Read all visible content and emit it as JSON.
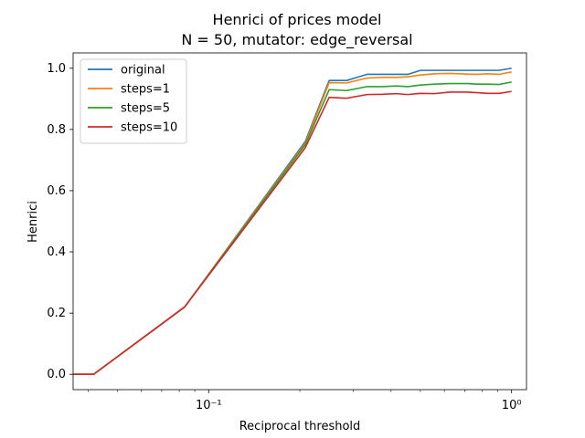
{
  "chart_data": {
    "type": "line",
    "title": "Henrici of prices model",
    "subtitle": "N = 50, mutator: edge_reversal",
    "xlabel": "Reciprocal threshold",
    "ylabel": "Henrici",
    "xscale": "log",
    "xlim": [
      0.0357,
      1.12
    ],
    "ylim": [
      -0.05,
      1.05
    ],
    "x": [
      0.0357,
      0.0417,
      0.0833,
      0.2083,
      0.25,
      0.2857,
      0.3333,
      0.375,
      0.4167,
      0.4545,
      0.5,
      0.5556,
      0.625,
      0.7143,
      0.7692,
      0.8333,
      0.9091,
      1.0
    ],
    "x_ticks": [
      {
        "value": 0.1,
        "label": "10⁻¹"
      },
      {
        "value": 1.0,
        "label": "10⁰"
      }
    ],
    "x_minor_ticks": [
      0.04,
      0.05,
      0.06,
      0.07,
      0.08,
      0.09,
      0.2,
      0.3,
      0.4,
      0.5,
      0.6,
      0.7,
      0.8,
      0.9
    ],
    "y_ticks": [
      {
        "value": 0.0,
        "label": "0.0"
      },
      {
        "value": 0.2,
        "label": "0.2"
      },
      {
        "value": 0.4,
        "label": "0.4"
      },
      {
        "value": 0.6,
        "label": "0.6"
      },
      {
        "value": 0.8,
        "label": "0.8"
      },
      {
        "value": 1.0,
        "label": "1.0"
      }
    ],
    "legend_position": "top-left",
    "grid": false,
    "series": [
      {
        "name": "original",
        "color": "#1f77b4",
        "values": [
          0.0,
          0.0,
          0.22,
          0.76,
          0.96,
          0.96,
          0.98,
          0.98,
          0.98,
          0.98,
          0.993,
          0.993,
          0.993,
          0.993,
          0.993,
          0.993,
          0.993,
          1.0
        ]
      },
      {
        "name": "steps=1",
        "color": "#ff7f0e",
        "values": [
          0.0,
          0.0,
          0.22,
          0.755,
          0.953,
          0.952,
          0.968,
          0.97,
          0.97,
          0.972,
          0.978,
          0.982,
          0.983,
          0.981,
          0.98,
          0.982,
          0.98,
          0.988
        ]
      },
      {
        "name": "steps=5",
        "color": "#2ca02c",
        "values": [
          0.0,
          0.0,
          0.22,
          0.75,
          0.93,
          0.927,
          0.94,
          0.94,
          0.942,
          0.94,
          0.945,
          0.948,
          0.95,
          0.95,
          0.948,
          0.948,
          0.947,
          0.955
        ]
      },
      {
        "name": "steps=10",
        "color": "#d62728",
        "values": [
          0.0,
          0.0,
          0.22,
          0.74,
          0.905,
          0.902,
          0.914,
          0.915,
          0.917,
          0.914,
          0.918,
          0.917,
          0.922,
          0.922,
          0.92,
          0.918,
          0.918,
          0.924
        ]
      }
    ]
  }
}
